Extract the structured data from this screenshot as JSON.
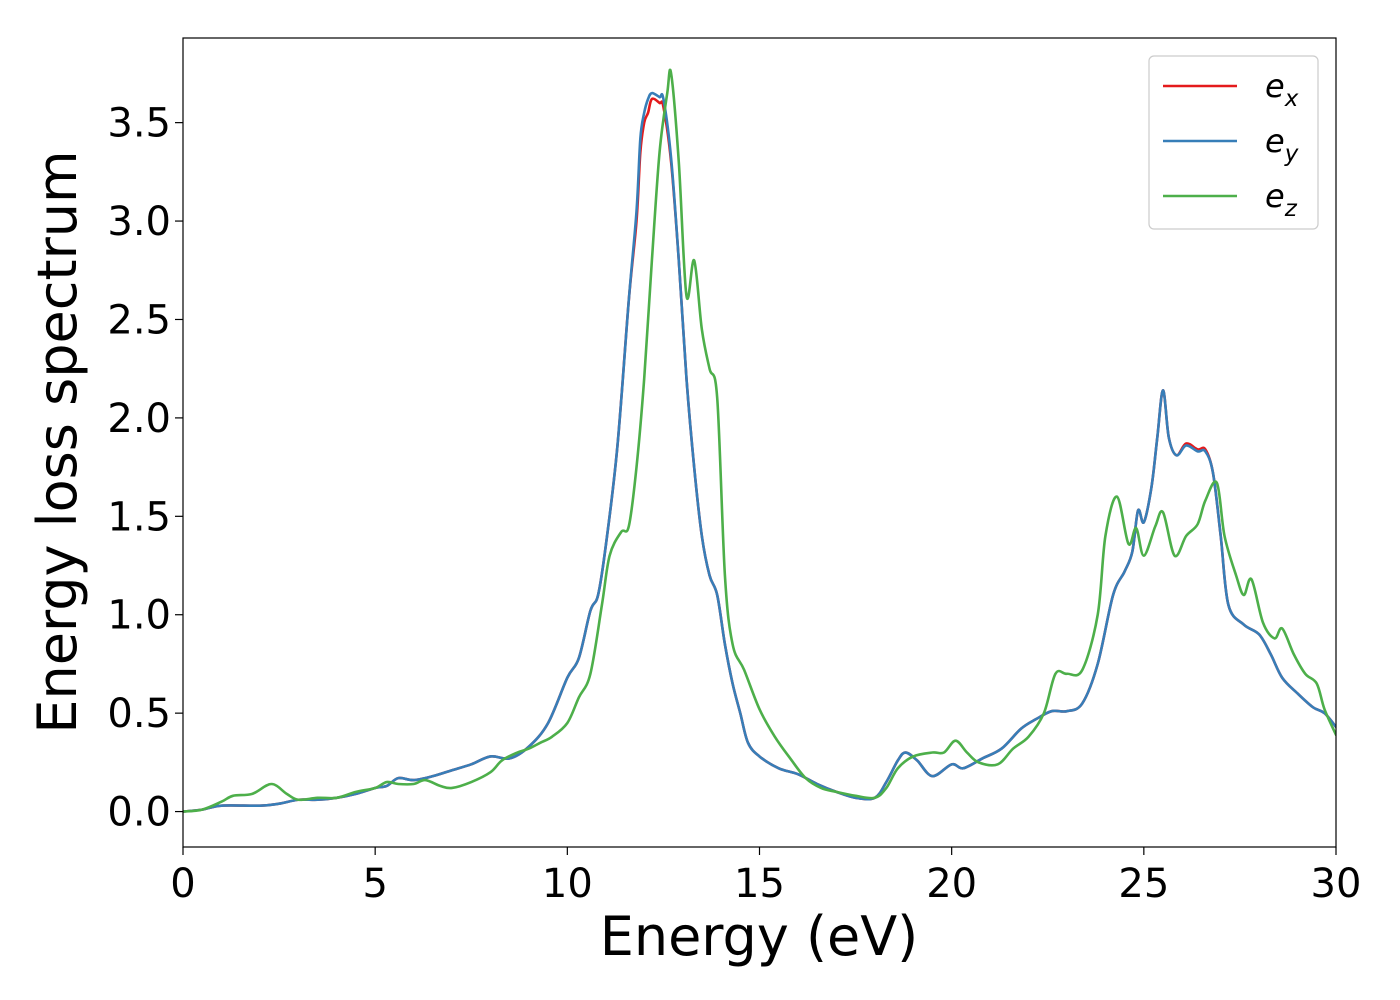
{
  "chart_data": {
    "type": "line",
    "xlabel": "Energy (eV)",
    "ylabel": "Energy loss spectrum",
    "xlim": [
      0,
      30
    ],
    "ylim": [
      -0.18,
      3.93
    ],
    "xticks": [
      0,
      5,
      10,
      15,
      20,
      25,
      30
    ],
    "xtick_labels": [
      "0",
      "5",
      "10",
      "15",
      "20",
      "25",
      "30"
    ],
    "yticks": [
      0.0,
      0.5,
      1.0,
      1.5,
      2.0,
      2.5,
      3.0,
      3.5
    ],
    "ytick_labels": [
      "0.0",
      "0.5",
      "1.0",
      "1.5",
      "2.0",
      "2.5",
      "3.0",
      "3.5"
    ],
    "grid": false,
    "legend_position": "top-right",
    "series": [
      {
        "name": "e",
        "subscript": "x",
        "color": "#e41a1c",
        "points": [
          [
            0,
            0.0
          ],
          [
            0.5,
            0.01
          ],
          [
            1,
            0.03
          ],
          [
            2,
            0.03
          ],
          [
            2.5,
            0.04
          ],
          [
            3,
            0.06
          ],
          [
            3.5,
            0.06
          ],
          [
            4,
            0.07
          ],
          [
            4.5,
            0.09
          ],
          [
            5,
            0.12
          ],
          [
            5.3,
            0.13
          ],
          [
            5.6,
            0.17
          ],
          [
            6,
            0.16
          ],
          [
            6.5,
            0.18
          ],
          [
            7,
            0.21
          ],
          [
            7.5,
            0.24
          ],
          [
            8,
            0.28
          ],
          [
            8.5,
            0.27
          ],
          [
            9,
            0.33
          ],
          [
            9.5,
            0.45
          ],
          [
            10,
            0.68
          ],
          [
            10.3,
            0.78
          ],
          [
            10.6,
            1.02
          ],
          [
            10.8,
            1.1
          ],
          [
            11,
            1.35
          ],
          [
            11.3,
            1.85
          ],
          [
            11.6,
            2.6
          ],
          [
            11.8,
            3.0
          ],
          [
            11.9,
            3.35
          ],
          [
            12.0,
            3.5
          ],
          [
            12.1,
            3.55
          ],
          [
            12.2,
            3.62
          ],
          [
            12.4,
            3.6
          ],
          [
            12.5,
            3.58
          ],
          [
            12.7,
            3.3
          ],
          [
            12.9,
            2.8
          ],
          [
            13.1,
            2.2
          ],
          [
            13.3,
            1.75
          ],
          [
            13.5,
            1.4
          ],
          [
            13.7,
            1.2
          ],
          [
            13.9,
            1.1
          ],
          [
            14.1,
            0.85
          ],
          [
            14.3,
            0.65
          ],
          [
            14.5,
            0.5
          ],
          [
            14.7,
            0.35
          ],
          [
            15,
            0.28
          ],
          [
            15.5,
            0.22
          ],
          [
            16,
            0.19
          ],
          [
            16.5,
            0.14
          ],
          [
            17,
            0.1
          ],
          [
            17.5,
            0.07
          ],
          [
            18,
            0.07
          ],
          [
            18.3,
            0.15
          ],
          [
            18.6,
            0.26
          ],
          [
            18.8,
            0.3
          ],
          [
            19.1,
            0.26
          ],
          [
            19.5,
            0.18
          ],
          [
            20,
            0.24
          ],
          [
            20.3,
            0.22
          ],
          [
            20.8,
            0.27
          ],
          [
            21.3,
            0.32
          ],
          [
            21.8,
            0.42
          ],
          [
            22.2,
            0.47
          ],
          [
            22.6,
            0.51
          ],
          [
            23,
            0.51
          ],
          [
            23.4,
            0.55
          ],
          [
            23.8,
            0.75
          ],
          [
            24.2,
            1.1
          ],
          [
            24.5,
            1.22
          ],
          [
            24.7,
            1.32
          ],
          [
            24.85,
            1.53
          ],
          [
            25.0,
            1.47
          ],
          [
            25.2,
            1.65
          ],
          [
            25.35,
            1.9
          ],
          [
            25.5,
            2.14
          ],
          [
            25.65,
            1.9
          ],
          [
            25.85,
            1.81
          ],
          [
            26.1,
            1.87
          ],
          [
            26.4,
            1.84
          ],
          [
            26.6,
            1.84
          ],
          [
            26.8,
            1.72
          ],
          [
            27.0,
            1.4
          ],
          [
            27.2,
            1.05
          ],
          [
            27.6,
            0.95
          ],
          [
            28.0,
            0.9
          ],
          [
            28.3,
            0.8
          ],
          [
            28.6,
            0.68
          ],
          [
            29.0,
            0.6
          ],
          [
            29.4,
            0.53
          ],
          [
            29.7,
            0.5
          ],
          [
            30,
            0.43
          ]
        ]
      },
      {
        "name": "e",
        "subscript": "y",
        "color": "#377eb8",
        "points": [
          [
            0,
            0.0
          ],
          [
            0.5,
            0.01
          ],
          [
            1,
            0.03
          ],
          [
            2,
            0.03
          ],
          [
            2.5,
            0.04
          ],
          [
            3,
            0.06
          ],
          [
            3.5,
            0.06
          ],
          [
            4,
            0.07
          ],
          [
            4.5,
            0.09
          ],
          [
            5,
            0.12
          ],
          [
            5.3,
            0.13
          ],
          [
            5.6,
            0.17
          ],
          [
            6,
            0.16
          ],
          [
            6.5,
            0.18
          ],
          [
            7,
            0.21
          ],
          [
            7.5,
            0.24
          ],
          [
            8,
            0.28
          ],
          [
            8.5,
            0.27
          ],
          [
            9,
            0.33
          ],
          [
            9.5,
            0.45
          ],
          [
            10,
            0.68
          ],
          [
            10.3,
            0.78
          ],
          [
            10.6,
            1.02
          ],
          [
            10.8,
            1.1
          ],
          [
            11,
            1.35
          ],
          [
            11.3,
            1.85
          ],
          [
            11.6,
            2.6
          ],
          [
            11.8,
            3.05
          ],
          [
            11.9,
            3.42
          ],
          [
            12.0,
            3.55
          ],
          [
            12.1,
            3.62
          ],
          [
            12.2,
            3.65
          ],
          [
            12.4,
            3.63
          ],
          [
            12.5,
            3.62
          ],
          [
            12.7,
            3.32
          ],
          [
            12.9,
            2.8
          ],
          [
            13.1,
            2.2
          ],
          [
            13.3,
            1.75
          ],
          [
            13.5,
            1.4
          ],
          [
            13.7,
            1.2
          ],
          [
            13.9,
            1.1
          ],
          [
            14.1,
            0.85
          ],
          [
            14.3,
            0.65
          ],
          [
            14.5,
            0.5
          ],
          [
            14.7,
            0.35
          ],
          [
            15,
            0.28
          ],
          [
            15.5,
            0.22
          ],
          [
            16,
            0.19
          ],
          [
            16.5,
            0.14
          ],
          [
            17,
            0.1
          ],
          [
            17.5,
            0.07
          ],
          [
            18,
            0.07
          ],
          [
            18.3,
            0.15
          ],
          [
            18.6,
            0.26
          ],
          [
            18.8,
            0.3
          ],
          [
            19.1,
            0.26
          ],
          [
            19.5,
            0.18
          ],
          [
            20,
            0.24
          ],
          [
            20.3,
            0.22
          ],
          [
            20.8,
            0.27
          ],
          [
            21.3,
            0.32
          ],
          [
            21.8,
            0.42
          ],
          [
            22.2,
            0.47
          ],
          [
            22.6,
            0.51
          ],
          [
            23,
            0.51
          ],
          [
            23.4,
            0.55
          ],
          [
            23.8,
            0.75
          ],
          [
            24.2,
            1.1
          ],
          [
            24.5,
            1.22
          ],
          [
            24.7,
            1.32
          ],
          [
            24.85,
            1.53
          ],
          [
            25.0,
            1.47
          ],
          [
            25.2,
            1.65
          ],
          [
            25.35,
            1.9
          ],
          [
            25.5,
            2.14
          ],
          [
            25.65,
            1.9
          ],
          [
            25.85,
            1.81
          ],
          [
            26.1,
            1.86
          ],
          [
            26.4,
            1.83
          ],
          [
            26.6,
            1.83
          ],
          [
            26.8,
            1.72
          ],
          [
            27.0,
            1.4
          ],
          [
            27.2,
            1.05
          ],
          [
            27.6,
            0.95
          ],
          [
            28.0,
            0.9
          ],
          [
            28.3,
            0.8
          ],
          [
            28.6,
            0.68
          ],
          [
            29.0,
            0.6
          ],
          [
            29.4,
            0.53
          ],
          [
            29.7,
            0.5
          ],
          [
            30,
            0.43
          ]
        ]
      },
      {
        "name": "e",
        "subscript": "z",
        "color": "#4daf4a",
        "points": [
          [
            0,
            0.0
          ],
          [
            0.5,
            0.01
          ],
          [
            1,
            0.05
          ],
          [
            1.3,
            0.08
          ],
          [
            1.8,
            0.09
          ],
          [
            2.3,
            0.14
          ],
          [
            2.7,
            0.09
          ],
          [
            3,
            0.06
          ],
          [
            3.5,
            0.07
          ],
          [
            4,
            0.07
          ],
          [
            4.5,
            0.1
          ],
          [
            5,
            0.12
          ],
          [
            5.3,
            0.15
          ],
          [
            5.6,
            0.14
          ],
          [
            6,
            0.14
          ],
          [
            6.3,
            0.16
          ],
          [
            6.7,
            0.13
          ],
          [
            7,
            0.12
          ],
          [
            7.5,
            0.15
          ],
          [
            8,
            0.2
          ],
          [
            8.3,
            0.26
          ],
          [
            8.7,
            0.3
          ],
          [
            9,
            0.32
          ],
          [
            9.3,
            0.35
          ],
          [
            9.6,
            0.38
          ],
          [
            10,
            0.45
          ],
          [
            10.3,
            0.58
          ],
          [
            10.6,
            0.7
          ],
          [
            10.9,
            1.05
          ],
          [
            11.1,
            1.3
          ],
          [
            11.4,
            1.42
          ],
          [
            11.6,
            1.45
          ],
          [
            11.8,
            1.75
          ],
          [
            12.0,
            2.2
          ],
          [
            12.2,
            2.8
          ],
          [
            12.4,
            3.35
          ],
          [
            12.6,
            3.65
          ],
          [
            12.7,
            3.75
          ],
          [
            12.9,
            3.3
          ],
          [
            13.1,
            2.62
          ],
          [
            13.3,
            2.8
          ],
          [
            13.5,
            2.45
          ],
          [
            13.7,
            2.25
          ],
          [
            13.9,
            2.1
          ],
          [
            14.1,
            1.2
          ],
          [
            14.3,
            0.85
          ],
          [
            14.6,
            0.72
          ],
          [
            15,
            0.52
          ],
          [
            15.4,
            0.38
          ],
          [
            15.8,
            0.27
          ],
          [
            16.2,
            0.17
          ],
          [
            16.6,
            0.12
          ],
          [
            17,
            0.1
          ],
          [
            17.5,
            0.08
          ],
          [
            18,
            0.07
          ],
          [
            18.3,
            0.12
          ],
          [
            18.6,
            0.22
          ],
          [
            19.0,
            0.28
          ],
          [
            19.5,
            0.3
          ],
          [
            19.8,
            0.3
          ],
          [
            20.1,
            0.36
          ],
          [
            20.4,
            0.3
          ],
          [
            20.7,
            0.25
          ],
          [
            21.2,
            0.24
          ],
          [
            21.6,
            0.32
          ],
          [
            22,
            0.38
          ],
          [
            22.4,
            0.5
          ],
          [
            22.7,
            0.7
          ],
          [
            23.0,
            0.7
          ],
          [
            23.4,
            0.72
          ],
          [
            23.8,
            1.0
          ],
          [
            24.0,
            1.4
          ],
          [
            24.3,
            1.6
          ],
          [
            24.6,
            1.36
          ],
          [
            24.8,
            1.44
          ],
          [
            25.0,
            1.3
          ],
          [
            25.3,
            1.45
          ],
          [
            25.5,
            1.52
          ],
          [
            25.8,
            1.3
          ],
          [
            26.1,
            1.4
          ],
          [
            26.4,
            1.46
          ],
          [
            26.6,
            1.58
          ],
          [
            26.9,
            1.67
          ],
          [
            27.1,
            1.4
          ],
          [
            27.4,
            1.2
          ],
          [
            27.6,
            1.1
          ],
          [
            27.8,
            1.18
          ],
          [
            28.1,
            0.96
          ],
          [
            28.4,
            0.88
          ],
          [
            28.6,
            0.93
          ],
          [
            28.9,
            0.8
          ],
          [
            29.2,
            0.7
          ],
          [
            29.5,
            0.65
          ],
          [
            29.7,
            0.52
          ],
          [
            30,
            0.39
          ]
        ]
      }
    ]
  }
}
